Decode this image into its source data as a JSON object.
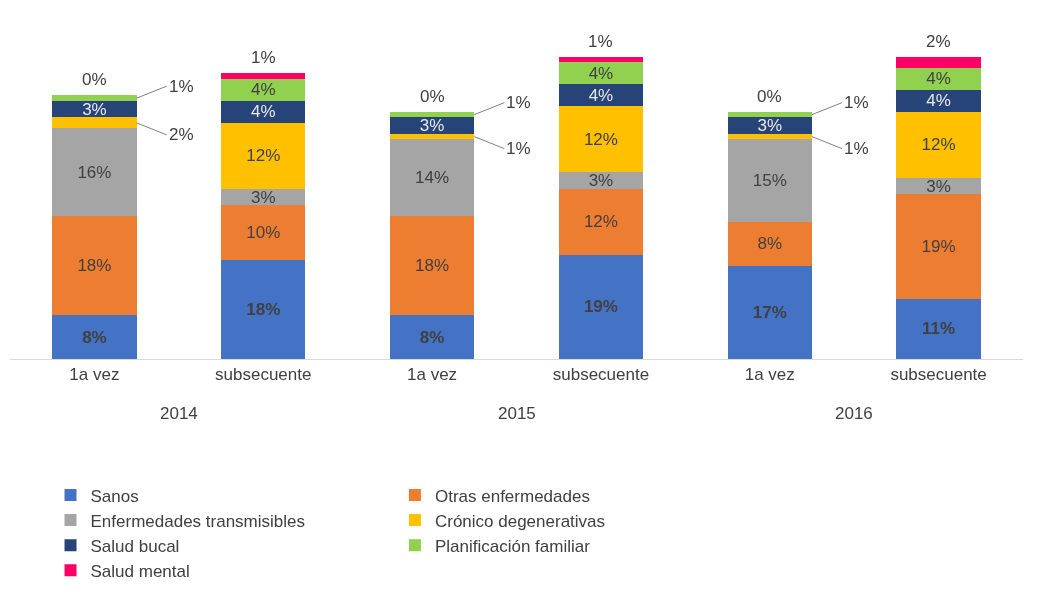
{
  "chart_data": {
    "type": "bar",
    "stacked": true,
    "legend": "bottom",
    "categories": [
      "1a vez",
      "subsecuente",
      "1a vez",
      "subsecuente",
      "1a vez",
      "subsecuente"
    ],
    "annotations": [
      "2014",
      "2015",
      "2016"
    ],
    "series": [
      {
        "name": "Sanos",
        "color": "#4472c4",
        "values": [
          8,
          18,
          8,
          19,
          17,
          11
        ],
        "value_labels": [
          "8%",
          "18%",
          "8%",
          "19%",
          "17%",
          "11%"
        ]
      },
      {
        "name": "Otras enfermedades",
        "color": "#ed7d31",
        "values": [
          18,
          10,
          18,
          12,
          8,
          19
        ],
        "value_labels": [
          "18%",
          "10%",
          "18%",
          "12%",
          "8%",
          "19%"
        ]
      },
      {
        "name": "Enfermedades transmisibles",
        "color": "#a5a5a5",
        "values": [
          16,
          3,
          14,
          3,
          15,
          3
        ],
        "value_labels": [
          "16%",
          "3%",
          "14%",
          "3%",
          "15%",
          "3%"
        ]
      },
      {
        "name": "Crónico degenerativas",
        "color": "#ffc000",
        "values": [
          2,
          12,
          1,
          12,
          1,
          12
        ],
        "value_labels": [
          "2%",
          "12%",
          "1%",
          "12%",
          "1%",
          "12%"
        ]
      },
      {
        "name": "Salud bucal",
        "color": "#264478",
        "values": [
          3,
          4,
          3,
          4,
          3,
          4
        ],
        "value_labels": [
          "3%",
          "4%",
          "3%",
          "4%",
          "3%",
          "4%"
        ]
      },
      {
        "name": "Planificación familiar",
        "color": "#92d050",
        "values": [
          1,
          4,
          1,
          4,
          1,
          4
        ],
        "value_labels": [
          "1%",
          "4%",
          "1%",
          "4%",
          "1%",
          "4%"
        ]
      },
      {
        "name": "Salud mental",
        "color": "#ff0066",
        "values": [
          0,
          1,
          0,
          1,
          0,
          2
        ],
        "value_labels": [
          "0%",
          "1%",
          "0%",
          "1%",
          "0%",
          "2%"
        ]
      }
    ]
  }
}
